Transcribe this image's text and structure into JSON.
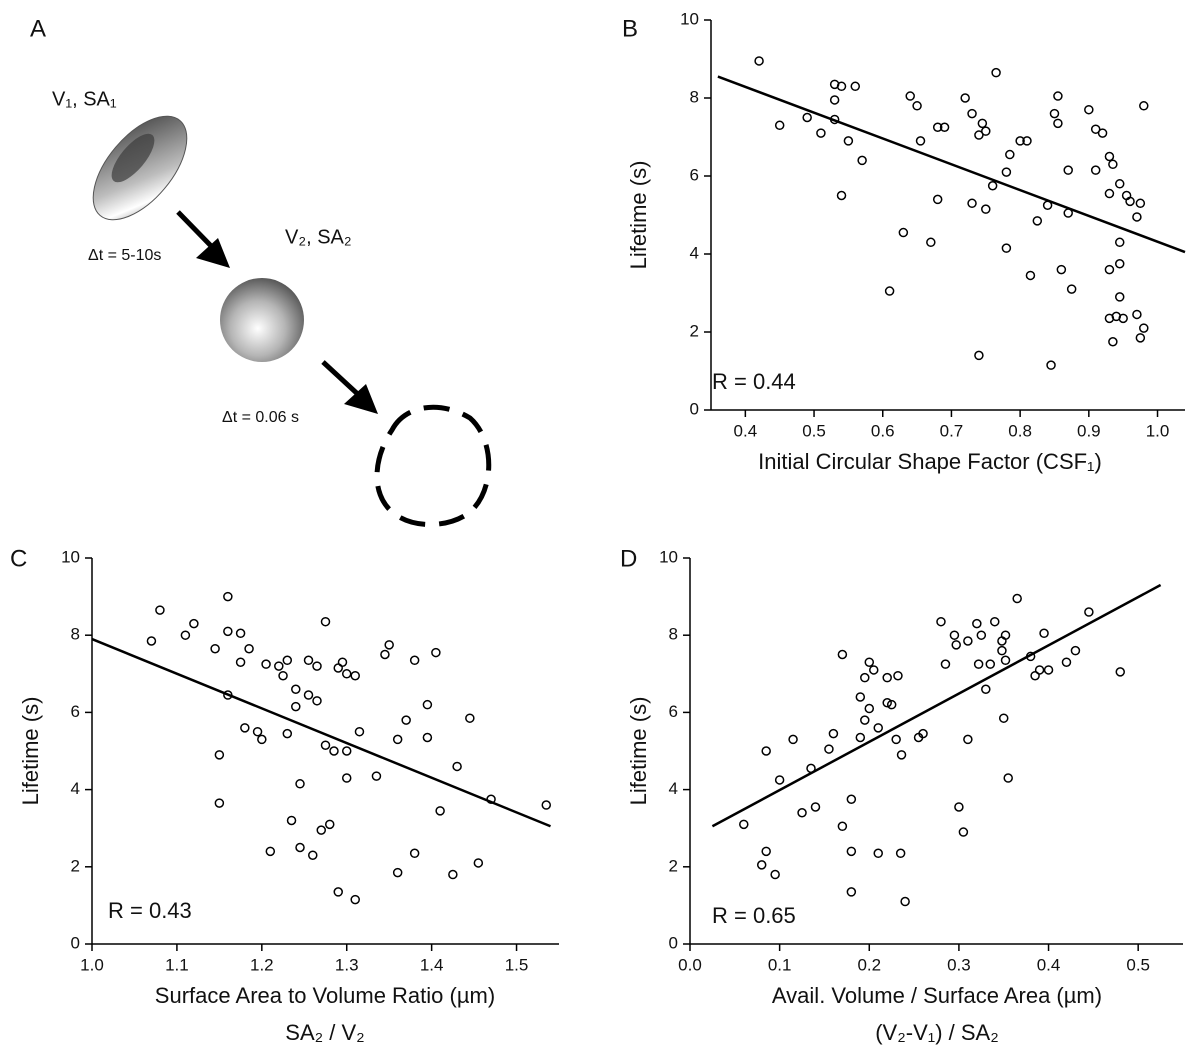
{
  "diagram": {
    "panel_label": "A",
    "start_label": "V₁, SA₁",
    "step1_label": "Δt = 5-10s",
    "middle_label": "V₂, SA₂",
    "step2_label": "Δt = 0.06 s"
  },
  "chart_data": [
    {
      "type": "scatter",
      "panel_label": "B",
      "annotation": "R = 0.44",
      "ylabel": "Lifetime (s)",
      "xlabel": "Initial Circular Shape Factor (CSF₁)",
      "xlim": [
        0.35,
        1.04
      ],
      "ylim": [
        0,
        10
      ],
      "xticks": [
        0.4,
        0.5,
        0.6,
        0.7,
        0.8,
        0.9,
        {
          "value": 1,
          "label": "1.0"
        }
      ],
      "yticks": [
        0,
        2,
        4,
        6,
        8,
        10
      ],
      "x": [
        0.42,
        0.45,
        0.49,
        0.51,
        0.53,
        0.53,
        0.54,
        0.53,
        0.55,
        0.54,
        0.56,
        0.57,
        0.61,
        0.63,
        0.64,
        0.65,
        0.655,
        0.67,
        0.68,
        0.68,
        0.69,
        0.72,
        0.73,
        0.73,
        0.74,
        0.745,
        0.75,
        0.75,
        0.74,
        0.76,
        0.765,
        0.78,
        0.78,
        0.785,
        0.8,
        0.81,
        0.815,
        0.825,
        0.84,
        0.845,
        0.85,
        0.855,
        0.855,
        0.86,
        0.87,
        0.87,
        0.875,
        0.9,
        0.91,
        0.91,
        0.92,
        0.93,
        0.93,
        0.93,
        0.93,
        0.935,
        0.935,
        0.94,
        0.945,
        0.945,
        0.945,
        0.945,
        0.95,
        0.955,
        0.96,
        0.97,
        0.97,
        0.975,
        0.975,
        0.98,
        0.98
      ],
      "values": [
        8.95,
        7.3,
        7.5,
        7.1,
        7.45,
        8.35,
        8.3,
        7.95,
        6.9,
        5.5,
        8.3,
        6.4,
        3.05,
        4.55,
        8.05,
        7.8,
        6.9,
        4.3,
        5.4,
        7.25,
        7.25,
        8.0,
        5.3,
        7.6,
        7.05,
        7.35,
        7.15,
        5.15,
        1.4,
        5.75,
        8.65,
        4.15,
        6.1,
        6.55,
        6.9,
        6.9,
        3.45,
        4.85,
        5.25,
        1.15,
        7.6,
        8.05,
        7.35,
        3.6,
        5.05,
        6.15,
        3.1,
        7.7,
        7.2,
        6.15,
        7.1,
        5.55,
        3.6,
        2.35,
        6.5,
        6.3,
        1.75,
        2.4,
        4.3,
        3.75,
        2.9,
        5.8,
        2.35,
        5.5,
        5.35,
        2.45,
        4.95,
        5.3,
        1.85,
        7.8,
        2.1
      ],
      "fit": {
        "x": [
          0.36,
          1.04
        ],
        "values": [
          8.55,
          4.05
        ]
      }
    },
    {
      "type": "scatter",
      "panel_label": "C",
      "annotation": "R = 0.43",
      "ylabel": "Lifetime (s)",
      "xlabel": "Surface Area to Volume Ratio (µm)",
      "xlabel_sub": "SA₂ / V₂",
      "xlim": [
        1.0,
        1.55
      ],
      "ylim": [
        0,
        10
      ],
      "xticks": [
        {
          "value": 1,
          "label": "1.0"
        },
        1.1,
        1.2,
        1.3,
        1.4,
        1.5
      ],
      "yticks": [
        0,
        2,
        4,
        6,
        8,
        10
      ],
      "x": [
        1.07,
        1.08,
        1.11,
        1.12,
        1.16,
        1.145,
        1.16,
        1.175,
        1.175,
        1.185,
        1.16,
        1.15,
        1.15,
        1.18,
        1.195,
        1.2,
        1.205,
        1.22,
        1.225,
        1.23,
        1.23,
        1.235,
        1.21,
        1.24,
        1.24,
        1.245,
        1.245,
        1.255,
        1.255,
        1.26,
        1.265,
        1.265,
        1.275,
        1.27,
        1.28,
        1.275,
        1.285,
        1.29,
        1.29,
        1.295,
        1.3,
        1.3,
        1.3,
        1.31,
        1.31,
        1.315,
        1.335,
        1.345,
        1.35,
        1.36,
        1.36,
        1.37,
        1.38,
        1.38,
        1.395,
        1.395,
        1.405,
        1.41,
        1.425,
        1.43,
        1.445,
        1.455,
        1.47,
        1.535
      ],
      "values": [
        7.85,
        8.65,
        8.0,
        8.3,
        9.0,
        7.65,
        8.1,
        8.05,
        7.3,
        7.65,
        6.45,
        4.9,
        3.65,
        5.6,
        5.5,
        5.3,
        7.25,
        7.2,
        6.95,
        7.35,
        5.45,
        3.2,
        2.4,
        6.6,
        6.15,
        4.15,
        2.5,
        7.35,
        6.45,
        2.3,
        6.3,
        7.2,
        8.35,
        2.95,
        3.1,
        5.15,
        5.0,
        1.35,
        7.15,
        7.3,
        7.0,
        5.0,
        4.3,
        1.15,
        6.95,
        5.5,
        4.35,
        7.5,
        7.75,
        5.3,
        1.85,
        5.8,
        2.35,
        7.35,
        5.35,
        6.2,
        7.55,
        3.45,
        1.8,
        4.6,
        5.85,
        2.1,
        3.75,
        3.6
      ],
      "fit": {
        "x": [
          1.0,
          1.54
        ],
        "values": [
          7.9,
          3.05
        ]
      }
    },
    {
      "type": "scatter",
      "panel_label": "D",
      "annotation": "R = 0.65",
      "ylabel": "Lifetime (s)",
      "xlabel": "Avail. Volume / Surface Area (µm)",
      "xlabel_sub": "(V₂-V₁) / SA₂",
      "xlim": [
        0,
        0.55
      ],
      "ylim": [
        0,
        10
      ],
      "xticks": [
        {
          "value": 0,
          "label": "0.0"
        },
        0.1,
        0.2,
        0.3,
        0.4,
        0.5
      ],
      "yticks": [
        0,
        2,
        4,
        6,
        8,
        10
      ],
      "x": [
        0.06,
        0.085,
        0.085,
        0.08,
        0.095,
        0.1,
        0.115,
        0.125,
        0.135,
        0.14,
        0.155,
        0.16,
        0.17,
        0.17,
        0.18,
        0.18,
        0.18,
        0.19,
        0.19,
        0.195,
        0.195,
        0.2,
        0.2,
        0.205,
        0.21,
        0.21,
        0.22,
        0.22,
        0.225,
        0.23,
        0.232,
        0.236,
        0.235,
        0.24,
        0.255,
        0.26,
        0.28,
        0.285,
        0.295,
        0.297,
        0.3,
        0.305,
        0.31,
        0.31,
        0.32,
        0.325,
        0.322,
        0.33,
        0.335,
        0.34,
        0.348,
        0.348,
        0.352,
        0.352,
        0.35,
        0.355,
        0.365,
        0.38,
        0.385,
        0.39,
        0.395,
        0.4,
        0.42,
        0.43,
        0.445,
        0.48
      ],
      "values": [
        3.1,
        5.0,
        2.4,
        2.05,
        1.8,
        4.25,
        5.3,
        3.4,
        4.55,
        3.55,
        5.05,
        5.45,
        7.5,
        3.05,
        3.75,
        2.4,
        1.35,
        6.4,
        5.35,
        6.9,
        5.8,
        6.1,
        7.3,
        7.1,
        5.6,
        2.35,
        6.9,
        6.25,
        6.2,
        5.3,
        6.95,
        4.9,
        2.35,
        1.1,
        5.35,
        5.45,
        8.35,
        7.25,
        8.0,
        7.75,
        3.55,
        2.9,
        7.85,
        5.3,
        8.3,
        8.0,
        7.25,
        6.6,
        7.25,
        8.35,
        7.85,
        7.6,
        8.0,
        7.35,
        5.85,
        4.3,
        8.95,
        7.45,
        6.95,
        7.1,
        8.05,
        7.1,
        7.3,
        7.6,
        8.6,
        7.05
      ],
      "fit": {
        "x": [
          0.025,
          0.525
        ],
        "values": [
          3.05,
          9.3
        ]
      }
    }
  ]
}
